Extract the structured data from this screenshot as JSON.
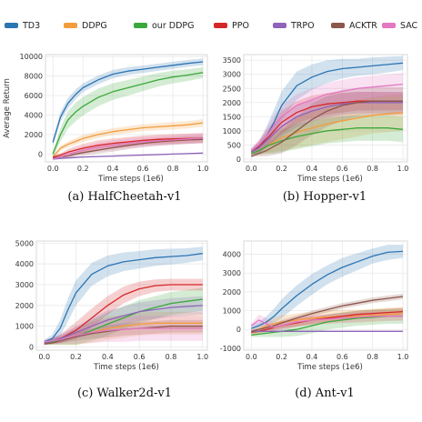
{
  "legend": [
    {
      "name": "TD3",
      "color": "#2c75b3"
    },
    {
      "name": "DDPG",
      "color": "#f39c3d"
    },
    {
      "name": "our DDPG",
      "color": "#3aa83a"
    },
    {
      "name": "PPO",
      "color": "#d62728"
    },
    {
      "name": "TRPO",
      "color": "#8e63b9"
    },
    {
      "name": "ACKTR",
      "color": "#8c564b"
    },
    {
      "name": "SAC",
      "color": "#e377c2"
    }
  ],
  "chart_data": [
    {
      "type": "line",
      "caption": "(a) HalfCheetah-v1",
      "xlabel": "Time steps (1e6)",
      "ylabel": "Average Return",
      "xlim": [
        -0.05,
        1.03
      ],
      "ylim": [
        -800,
        10200
      ],
      "xticks": [
        0.0,
        0.2,
        0.4,
        0.6,
        0.8,
        1.0
      ],
      "yticks": [
        0,
        2000,
        4000,
        6000,
        8000,
        10000
      ],
      "x": [
        0.0,
        0.05,
        0.1,
        0.15,
        0.2,
        0.3,
        0.4,
        0.5,
        0.6,
        0.7,
        0.8,
        0.9,
        1.0
      ],
      "series": [
        {
          "name": "TD3",
          "values": [
            1200,
            3800,
            5200,
            6100,
            6800,
            7600,
            8200,
            8500,
            8700,
            8900,
            9100,
            9300,
            9450
          ],
          "band": [
            350,
            500,
            550,
            500,
            450,
            450,
            420,
            400,
            380,
            370,
            360,
            350,
            340
          ]
        },
        {
          "name": "DDPG",
          "values": [
            -300,
            600,
            1000,
            1300,
            1600,
            2000,
            2300,
            2500,
            2700,
            2800,
            2900,
            3000,
            3200
          ],
          "band": [
            150,
            250,
            300,
            330,
            350,
            350,
            350,
            360,
            360,
            360,
            370,
            370,
            380
          ]
        },
        {
          "name": "our DDPG",
          "values": [
            0,
            2000,
            3500,
            4300,
            4900,
            5800,
            6400,
            6800,
            7200,
            7600,
            7900,
            8100,
            8350
          ],
          "band": [
            300,
            700,
            900,
            950,
            950,
            900,
            850,
            800,
            750,
            700,
            650,
            600,
            550
          ]
        },
        {
          "name": "PPO",
          "values": [
            -300,
            -100,
            200,
            400,
            600,
            900,
            1100,
            1250,
            1400,
            1500,
            1550,
            1600,
            1650
          ],
          "band": [
            100,
            200,
            300,
            400,
            450,
            500,
            500,
            500,
            500,
            500,
            500,
            500,
            500
          ]
        },
        {
          "name": "TRPO",
          "values": [
            -500,
            -450,
            -400,
            -350,
            -300,
            -250,
            -200,
            -150,
            -100,
            -50,
            0,
            50,
            100
          ],
          "band": [
            50,
            50,
            60,
            60,
            60,
            60,
            60,
            60,
            60,
            60,
            60,
            60,
            60
          ]
        },
        {
          "name": "ACKTR",
          "values": [
            -400,
            -300,
            -200,
            0,
            150,
            400,
            650,
            900,
            1100,
            1250,
            1350,
            1450,
            1500
          ],
          "band": [
            100,
            150,
            200,
            250,
            300,
            350,
            400,
            400,
            400,
            400,
            400,
            400,
            400
          ]
        },
        {
          "name": "SAC",
          "values": [
            -500,
            -300,
            0,
            200,
            400,
            700,
            900,
            1100,
            1250,
            1350,
            1450,
            1550,
            1650
          ],
          "band": [
            100,
            200,
            300,
            350,
            400,
            450,
            500,
            500,
            500,
            500,
            500,
            500,
            500
          ]
        }
      ]
    },
    {
      "type": "line",
      "caption": "(b) Hopper-v1",
      "xlabel": "Time steps (1e6)",
      "ylabel": "",
      "xlim": [
        -0.05,
        1.03
      ],
      "ylim": [
        -100,
        3700
      ],
      "xticks": [
        0.0,
        0.2,
        0.4,
        0.6,
        0.8,
        1.0
      ],
      "yticks": [
        0,
        500,
        1000,
        1500,
        2000,
        2500,
        3000,
        3500
      ],
      "x": [
        0.0,
        0.05,
        0.1,
        0.15,
        0.2,
        0.3,
        0.4,
        0.5,
        0.6,
        0.7,
        0.8,
        0.9,
        1.0
      ],
      "series": [
        {
          "name": "TD3",
          "values": [
            250,
            400,
            800,
            1300,
            1900,
            2600,
            2900,
            3100,
            3200,
            3250,
            3300,
            3350,
            3400
          ],
          "band": [
            100,
            200,
            350,
            450,
            500,
            500,
            450,
            400,
            350,
            300,
            300,
            280,
            250
          ]
        },
        {
          "name": "DDPG",
          "values": [
            200,
            300,
            450,
            600,
            750,
            950,
            1100,
            1250,
            1350,
            1450,
            1550,
            1600,
            1650
          ],
          "band": [
            100,
            150,
            250,
            350,
            450,
            550,
            600,
            650,
            650,
            650,
            650,
            650,
            650
          ]
        },
        {
          "name": "our DDPG",
          "values": [
            200,
            300,
            450,
            550,
            650,
            800,
            900,
            1000,
            1050,
            1100,
            1100,
            1100,
            1050
          ],
          "band": [
            100,
            150,
            250,
            350,
            400,
            450,
            450,
            450,
            450,
            450,
            450,
            450,
            450
          ]
        },
        {
          "name": "PPO",
          "values": [
            250,
            450,
            700,
            1000,
            1300,
            1650,
            1850,
            1950,
            2000,
            2050,
            2050,
            2050,
            2050
          ],
          "band": [
            100,
            200,
            300,
            350,
            400,
            400,
            400,
            380,
            350,
            330,
            330,
            320,
            320
          ]
        },
        {
          "name": "TRPO",
          "values": [
            250,
            400,
            650,
            900,
            1150,
            1500,
            1700,
            1850,
            1950,
            2000,
            2000,
            2000,
            2000
          ],
          "band": [
            100,
            200,
            250,
            300,
            350,
            380,
            380,
            380,
            380,
            380,
            380,
            380,
            380
          ]
        },
        {
          "name": "ACKTR",
          "values": [
            100,
            200,
            300,
            450,
            600,
            1000,
            1400,
            1700,
            1900,
            2000,
            2050,
            2050,
            2050
          ],
          "band": [
            50,
            100,
            200,
            300,
            400,
            500,
            550,
            550,
            550,
            500,
            500,
            500,
            500
          ]
        },
        {
          "name": "SAC",
          "values": [
            300,
            500,
            800,
            1200,
            1500,
            1900,
            2100,
            2300,
            2400,
            2500,
            2550,
            2600,
            2650
          ],
          "band": [
            100,
            200,
            300,
            350,
            400,
            400,
            400,
            400,
            400,
            400,
            400,
            400,
            400
          ]
        }
      ]
    },
    {
      "type": "line",
      "caption": "(c) Walker2d-v1",
      "xlabel": "Time steps (1e6)",
      "ylabel": "",
      "xlim": [
        -0.05,
        1.03
      ],
      "ylim": [
        -150,
        5100
      ],
      "xticks": [
        0.0,
        0.2,
        0.4,
        0.6,
        0.8,
        1.0
      ],
      "yticks": [
        0,
        1000,
        2000,
        3000,
        4000,
        5000
      ],
      "x": [
        0.0,
        0.05,
        0.1,
        0.15,
        0.2,
        0.3,
        0.4,
        0.5,
        0.6,
        0.7,
        0.8,
        0.9,
        1.0
      ],
      "series": [
        {
          "name": "TD3",
          "values": [
            250,
            400,
            900,
            1800,
            2600,
            3500,
            3900,
            4100,
            4200,
            4300,
            4350,
            4400,
            4500
          ],
          "band": [
            100,
            200,
            400,
            550,
            600,
            550,
            500,
            450,
            420,
            400,
            380,
            350,
            330
          ]
        },
        {
          "name": "DDPG",
          "values": [
            200,
            250,
            300,
            400,
            500,
            700,
            900,
            1000,
            1100,
            1150,
            1150,
            1150,
            1150
          ],
          "band": [
            80,
            120,
            200,
            300,
            400,
            500,
            550,
            550,
            550,
            550,
            550,
            550,
            550
          ]
        },
        {
          "name": "our DDPG",
          "values": [
            200,
            250,
            300,
            400,
            500,
            800,
            1100,
            1400,
            1700,
            1900,
            2100,
            2200,
            2300
          ],
          "band": [
            100,
            150,
            200,
            300,
            400,
            500,
            550,
            550,
            550,
            550,
            550,
            550,
            550
          ]
        },
        {
          "name": "PPO",
          "values": [
            200,
            300,
            400,
            600,
            800,
            1400,
            2000,
            2500,
            2800,
            2950,
            3000,
            3000,
            3000
          ],
          "band": [
            100,
            150,
            200,
            300,
            400,
            450,
            450,
            400,
            350,
            300,
            280,
            280,
            280
          ]
        },
        {
          "name": "TRPO",
          "values": [
            200,
            300,
            400,
            550,
            700,
            1000,
            1300,
            1500,
            1700,
            1800,
            1900,
            1950,
            2000
          ],
          "band": [
            80,
            120,
            200,
            250,
            300,
            400,
            450,
            450,
            450,
            450,
            450,
            450,
            450
          ]
        },
        {
          "name": "ACKTR",
          "values": [
            150,
            200,
            300,
            400,
            500,
            650,
            750,
            850,
            900,
            950,
            1000,
            1000,
            1000
          ],
          "band": [
            50,
            80,
            120,
            150,
            200,
            250,
            300,
            300,
            300,
            300,
            300,
            300,
            300
          ]
        },
        {
          "name": "SAC",
          "values": [
            250,
            300,
            350,
            450,
            550,
            700,
            800,
            850,
            900,
            900,
            900,
            900,
            900
          ],
          "band": [
            100,
            150,
            200,
            300,
            400,
            500,
            550,
            600,
            600,
            600,
            600,
            600,
            600
          ]
        }
      ]
    },
    {
      "type": "line",
      "caption": "(d) Ant-v1",
      "xlabel": "Time steps (1e6)",
      "ylabel": "",
      "xlim": [
        -0.05,
        1.03
      ],
      "ylim": [
        -1100,
        4700
      ],
      "xticks": [
        0.0,
        0.2,
        0.4,
        0.6,
        0.8,
        1.0
      ],
      "yticks": [
        -1000,
        0,
        1000,
        2000,
        3000,
        4000
      ],
      "x": [
        0.0,
        0.05,
        0.1,
        0.15,
        0.2,
        0.3,
        0.4,
        0.5,
        0.6,
        0.7,
        0.8,
        0.9,
        1.0
      ],
      "series": [
        {
          "name": "TD3",
          "values": [
            50,
            200,
            400,
            700,
            1100,
            1800,
            2400,
            2900,
            3300,
            3600,
            3900,
            4100,
            4150
          ],
          "band": [
            150,
            200,
            300,
            400,
            500,
            550,
            550,
            500,
            500,
            450,
            400,
            400,
            350
          ]
        },
        {
          "name": "DDPG",
          "values": [
            -200,
            0,
            200,
            300,
            400,
            500,
            600,
            650,
            700,
            700,
            750,
            800,
            850
          ],
          "band": [
            150,
            200,
            250,
            300,
            350,
            350,
            350,
            350,
            350,
            350,
            350,
            350,
            350
          ]
        },
        {
          "name": "our DDPG",
          "values": [
            -300,
            -250,
            -200,
            -150,
            -100,
            0,
            200,
            400,
            500,
            600,
            650,
            700,
            700
          ],
          "band": [
            100,
            150,
            200,
            250,
            300,
            350,
            400,
            400,
            400,
            400,
            400,
            400,
            400
          ]
        },
        {
          "name": "PPO",
          "values": [
            -150,
            -100,
            0,
            100,
            200,
            350,
            500,
            600,
            700,
            800,
            850,
            900,
            950
          ],
          "band": [
            50,
            100,
            150,
            150,
            150,
            200,
            200,
            200,
            200,
            200,
            200,
            200,
            200
          ]
        },
        {
          "name": "TRPO",
          "values": [
            -100,
            -100,
            -100,
            -100,
            -100,
            -100,
            -100,
            -100,
            -100,
            -100,
            -100,
            -100,
            -100
          ],
          "band": [
            30,
            30,
            30,
            30,
            30,
            30,
            30,
            30,
            30,
            30,
            30,
            30,
            30
          ]
        },
        {
          "name": "ACKTR",
          "values": [
            -100,
            0,
            100,
            200,
            350,
            600,
            850,
            1050,
            1250,
            1400,
            1550,
            1650,
            1750
          ],
          "band": [
            50,
            80,
            100,
            120,
            150,
            150,
            150,
            150,
            150,
            150,
            150,
            150,
            150
          ]
        },
        {
          "name": "SAC",
          "values": [
            200,
            500,
            300,
            100,
            200,
            400,
            500,
            550,
            600,
            650,
            700,
            700,
            700
          ],
          "band": [
            100,
            300,
            300,
            250,
            250,
            250,
            250,
            250,
            250,
            250,
            250,
            250,
            250
          ]
        }
      ]
    }
  ]
}
